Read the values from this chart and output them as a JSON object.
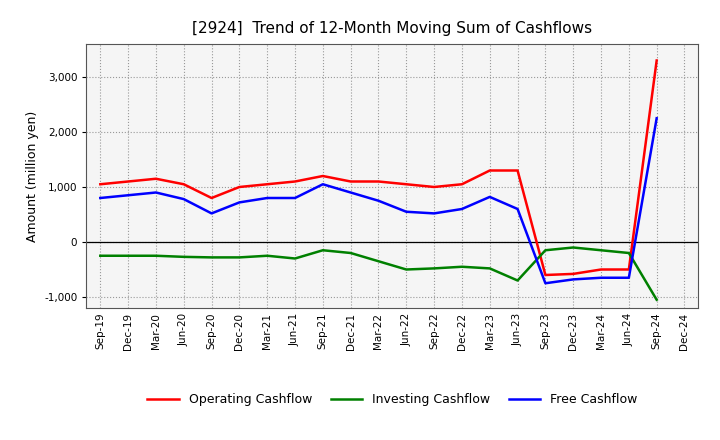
{
  "title": "[2924]  Trend of 12-Month Moving Sum of Cashflows",
  "ylabel": "Amount (million yen)",
  "x_labels": [
    "Sep-19",
    "Dec-19",
    "Mar-20",
    "Jun-20",
    "Sep-20",
    "Dec-20",
    "Mar-21",
    "Jun-21",
    "Sep-21",
    "Dec-21",
    "Mar-22",
    "Jun-22",
    "Sep-22",
    "Dec-22",
    "Mar-23",
    "Jun-23",
    "Sep-23",
    "Dec-23",
    "Mar-24",
    "Jun-24",
    "Sep-24",
    "Dec-24"
  ],
  "operating": [
    1050,
    1100,
    1150,
    1050,
    800,
    1000,
    1050,
    1100,
    1200,
    1100,
    1100,
    1050,
    1000,
    1050,
    1300,
    1300,
    -600,
    -580,
    -500,
    -500,
    3300,
    null
  ],
  "investing": [
    -250,
    -250,
    -250,
    -270,
    -280,
    -280,
    -250,
    -300,
    -150,
    -200,
    -350,
    -500,
    -480,
    -450,
    -480,
    -700,
    -150,
    -100,
    -150,
    -200,
    -1050,
    null
  ],
  "free": [
    800,
    850,
    900,
    780,
    520,
    720,
    800,
    800,
    1050,
    900,
    750,
    550,
    520,
    600,
    820,
    600,
    -750,
    -680,
    -650,
    -650,
    2250,
    null
  ],
  "colors": {
    "operating": "#ff0000",
    "investing": "#008000",
    "free": "#0000ff"
  },
  "ylim": [
    -1200,
    3600
  ],
  "yticks": [
    -1000,
    0,
    1000,
    2000,
    3000
  ],
  "legend_labels": [
    "Operating Cashflow",
    "Investing Cashflow",
    "Free Cashflow"
  ],
  "background_color": "#ffffff",
  "plot_bg_color": "#f5f5f5",
  "grid_color": "#999999",
  "line_width": 1.8,
  "title_fontsize": 11,
  "ylabel_fontsize": 9,
  "tick_fontsize": 7.5,
  "legend_fontsize": 9
}
